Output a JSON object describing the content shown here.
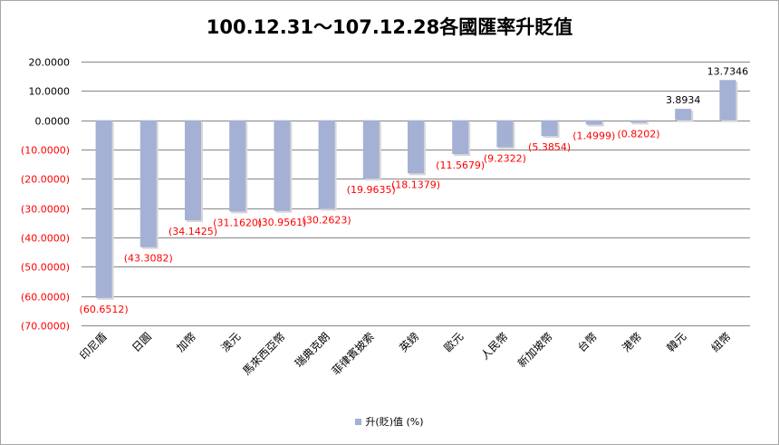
{
  "chart_data": {
    "type": "bar",
    "title": "100.12.31～107.12.28各國匯率升貶值",
    "categories": [
      "印尼盾",
      "日圓",
      "加幣",
      "澳元",
      "馬來西亞幣",
      "瑞典克朗",
      "菲律賓披索",
      "英鎊",
      "歐元",
      "人民幣",
      "新加坡幣",
      "台幣",
      "港幣",
      "韓元",
      "紐幣"
    ],
    "series": [
      {
        "name": "升(貶)值 (%)",
        "values": [
          -60.6512,
          -43.3082,
          -34.1425,
          -31.162,
          -30.9561,
          -30.2623,
          -19.9635,
          -18.1379,
          -11.5679,
          -9.2322,
          -5.3854,
          -1.4999,
          -0.8202,
          3.8934,
          13.7346
        ],
        "labels": [
          "(60.6512)",
          "(43.3082)",
          "(34.1425)",
          "(31.1620)",
          "(30.9561)",
          "(30.2623)",
          "(19.9635)",
          "(18.1379)",
          "(11.5679)",
          "(9.2322)",
          "(5.3854)",
          "(1.4999)",
          "(0.8202)",
          "3.8934",
          "13.7346"
        ]
      }
    ],
    "ylim": [
      -70,
      20
    ],
    "yticks": [
      20,
      10,
      0,
      -10,
      -20,
      -30,
      -40,
      -50,
      -60,
      -70
    ],
    "ytick_labels": [
      "20.0000",
      "10.0000",
      "0.0000",
      "(10.0000)",
      "(20.0000)",
      "(30.0000)",
      "(40.0000)",
      "(50.0000)",
      "(60.0000)",
      "(70.0000)"
    ],
    "grid": true,
    "legend_position": "bottom",
    "colors": {
      "bar": "#a4b1d4",
      "negative_text": "#ff0000",
      "positive_text": "#000000",
      "grid": "#868686"
    }
  },
  "legend": {
    "label": "升(貶)值 (%)"
  }
}
